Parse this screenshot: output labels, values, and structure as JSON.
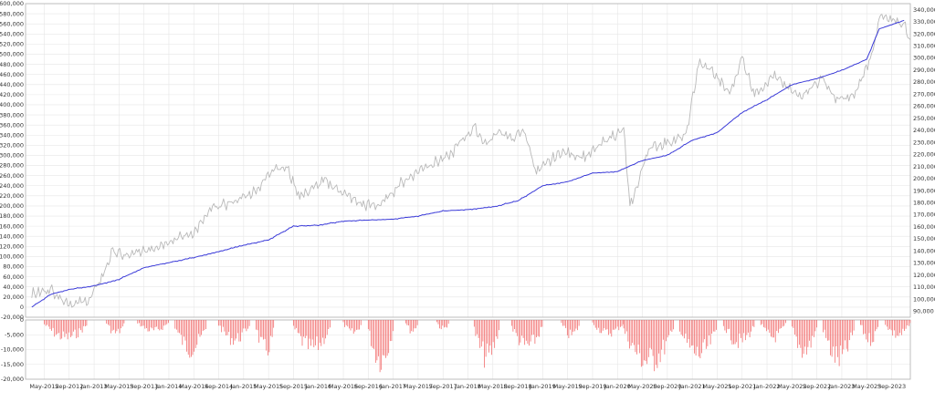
{
  "chart_data": [
    {
      "type": "line",
      "title": "",
      "xlabel": "",
      "ylabel": "",
      "left_axis": {
        "ylim": [
          -20000,
          600000
        ],
        "ticks": [
          -20000,
          0,
          20000,
          40000,
          60000,
          80000,
          100000,
          120000,
          140000,
          160000,
          180000,
          200000,
          220000,
          240000,
          260000,
          280000,
          300000,
          320000,
          340000,
          360000,
          380000,
          400000,
          420000,
          440000,
          460000,
          480000,
          500000,
          520000,
          540000,
          560000,
          580000,
          600000
        ],
        "tick_labels": [
          "-20,000",
          "0",
          "20,000",
          "40,000",
          "60,000",
          "80,000",
          "100,000",
          "120,000",
          "140,000",
          "160,000",
          "180,000",
          "200,000",
          "220,000",
          "240,000",
          "260,000",
          "280,000",
          "300,000",
          "320,000",
          "340,000",
          "360,000",
          "380,000",
          "400,000",
          "420,000",
          "440,000",
          "460,000",
          "480,000",
          "500,000",
          "520,000",
          "540,000",
          "560,000",
          "580,000",
          "600,000"
        ]
      },
      "right_axis": {
        "ylim": [
          85000,
          345000
        ],
        "ticks": [
          90000,
          100000,
          110000,
          120000,
          130000,
          140000,
          150000,
          160000,
          170000,
          180000,
          190000,
          200000,
          210000,
          220000,
          230000,
          240000,
          250000,
          260000,
          270000,
          280000,
          290000,
          300000,
          310000,
          320000,
          330000,
          340000
        ],
        "tick_labels": [
          "90,000",
          "100,000",
          "110,000",
          "120,000",
          "130,000",
          "140,000",
          "150,000",
          "160,000",
          "170,000",
          "180,000",
          "190,000",
          "200,000",
          "210,000",
          "220,000",
          "230,000",
          "240,000",
          "250,000",
          "260,000",
          "270,000",
          "280,000",
          "290,000",
          "300,000",
          "310,000",
          "320,000",
          "330,000",
          "340,000"
        ]
      },
      "x_tick_labels": [
        "May-2012",
        "Sep-2012",
        "Jan-2013",
        "May-2013",
        "Sep-2013",
        "Jan-2014",
        "May-2014",
        "Sep-2014",
        "Jan-2015",
        "May-2015",
        "Sep-2015",
        "Jan-2016",
        "May-2016",
        "Sep-2016",
        "Jan-2017",
        "May-2017",
        "Sep-2017",
        "Jan-2018",
        "May-2018",
        "Sep-2018",
        "Jan-2019",
        "May-2019",
        "Sep-2019",
        "Jan-2020",
        "May-2020",
        "Sep-2020",
        "Jan-2021",
        "May-2021",
        "Sep-2021",
        "Jan-2022",
        "May-2022",
        "Sep-2022",
        "Jan-2023",
        "May-2023",
        "Sep-2023"
      ],
      "grid": true,
      "series": [
        {
          "axis": "left",
          "color": "#3a3ad8",
          "x": [
            "2012-03",
            "2012-06",
            "2012-09",
            "2013-01",
            "2013-05",
            "2013-09",
            "2014-01",
            "2014-05",
            "2014-09",
            "2015-01",
            "2015-05",
            "2015-09",
            "2016-01",
            "2016-05",
            "2016-09",
            "2017-01",
            "2017-05",
            "2017-09",
            "2018-01",
            "2018-05",
            "2018-09",
            "2019-01",
            "2019-05",
            "2019-09",
            "2020-01",
            "2020-05",
            "2020-09",
            "2021-01",
            "2021-05",
            "2021-09",
            "2022-01",
            "2022-05",
            "2022-09",
            "2023-01",
            "2023-05",
            "2023-07",
            "2023-11"
          ],
          "values": [
            0,
            25000,
            35000,
            42000,
            55000,
            78000,
            88000,
            98000,
            110000,
            122000,
            133000,
            160000,
            162000,
            170000,
            172000,
            174000,
            180000,
            190000,
            193000,
            198000,
            210000,
            240000,
            248000,
            265000,
            268000,
            290000,
            300000,
            330000,
            345000,
            385000,
            410000,
            440000,
            452000,
            468000,
            490000,
            550000,
            567000
          ]
        },
        {
          "axis": "right",
          "color": "#b9b9b9",
          "x": [
            "2012-03",
            "2012-06",
            "2012-09",
            "2012-12",
            "2013-02",
            "2013-04",
            "2013-06",
            "2013-08",
            "2013-10",
            "2014-01",
            "2014-05",
            "2014-08",
            "2014-12",
            "2015-03",
            "2015-06",
            "2015-08",
            "2015-10",
            "2016-02",
            "2016-05",
            "2016-08",
            "2016-11",
            "2017-02",
            "2017-06",
            "2017-10",
            "2017-12",
            "2018-02",
            "2018-04",
            "2018-06",
            "2018-08",
            "2018-10",
            "2018-12",
            "2019-04",
            "2019-08",
            "2019-12",
            "2020-02",
            "2020-03",
            "2020-06",
            "2020-09",
            "2020-12",
            "2021-02",
            "2021-04",
            "2021-07",
            "2021-09",
            "2021-11",
            "2022-02",
            "2022-06",
            "2022-10",
            "2022-12",
            "2023-03",
            "2023-06",
            "2023-07",
            "2023-09",
            "2023-11",
            "2023-12"
          ],
          "values": [
            104000,
            108000,
            96000,
            98000,
            115000,
            140000,
            135000,
            138000,
            142000,
            148000,
            155000,
            175000,
            182000,
            190000,
            210000,
            208000,
            185000,
            198000,
            188000,
            178000,
            178000,
            195000,
            210000,
            218000,
            232000,
            242000,
            228000,
            240000,
            232000,
            240000,
            205000,
            222000,
            218000,
            235000,
            240000,
            175000,
            225000,
            230000,
            235000,
            295000,
            290000,
            270000,
            300000,
            270000,
            285000,
            268000,
            283000,
            265000,
            268000,
            305000,
            335000,
            330000,
            328000,
            315000
          ]
        }
      ]
    },
    {
      "type": "bar",
      "title": "",
      "ylabel": "",
      "ylim": [
        -20000,
        0
      ],
      "ticks": [
        0,
        -5000,
        -10000,
        -15000,
        -20000
      ],
      "tick_labels": [
        "0",
        "-5,000",
        "-10,000",
        "-15,000",
        "-20,000"
      ],
      "color": "#f05a5a",
      "episodes": [
        {
          "start": "2012-05",
          "end": "2012-12",
          "depth": -8000
        },
        {
          "start": "2013-03",
          "end": "2013-06",
          "depth": -6000
        },
        {
          "start": "2013-08",
          "end": "2014-01",
          "depth": -5000
        },
        {
          "start": "2014-02",
          "end": "2014-07",
          "depth": -13000
        },
        {
          "start": "2014-09",
          "end": "2015-02",
          "depth": -9000
        },
        {
          "start": "2015-03",
          "end": "2015-06",
          "depth": -14000
        },
        {
          "start": "2015-09",
          "end": "2016-03",
          "depth": -13000
        },
        {
          "start": "2016-05",
          "end": "2016-08",
          "depth": -6000
        },
        {
          "start": "2016-09",
          "end": "2017-01",
          "depth": -18000
        },
        {
          "start": "2017-03",
          "end": "2017-05",
          "depth": -5000
        },
        {
          "start": "2017-08",
          "end": "2017-10",
          "depth": -4000
        },
        {
          "start": "2018-02",
          "end": "2018-06",
          "depth": -17000
        },
        {
          "start": "2018-08",
          "end": "2019-01",
          "depth": -12000
        },
        {
          "start": "2019-04",
          "end": "2019-07",
          "depth": -7000
        },
        {
          "start": "2019-09",
          "end": "2020-02",
          "depth": -6000
        },
        {
          "start": "2020-02",
          "end": "2020-10",
          "depth": -19000
        },
        {
          "start": "2020-11",
          "end": "2021-05",
          "depth": -16000
        },
        {
          "start": "2021-06",
          "end": "2021-11",
          "depth": -10000
        },
        {
          "start": "2021-12",
          "end": "2022-04",
          "depth": -8000
        },
        {
          "start": "2022-05",
          "end": "2022-09",
          "depth": -14000
        },
        {
          "start": "2022-10",
          "end": "2023-03",
          "depth": -18000
        },
        {
          "start": "2023-04",
          "end": "2023-07",
          "depth": -9000
        },
        {
          "start": "2023-08",
          "end": "2023-12",
          "depth": -7000
        }
      ]
    }
  ]
}
